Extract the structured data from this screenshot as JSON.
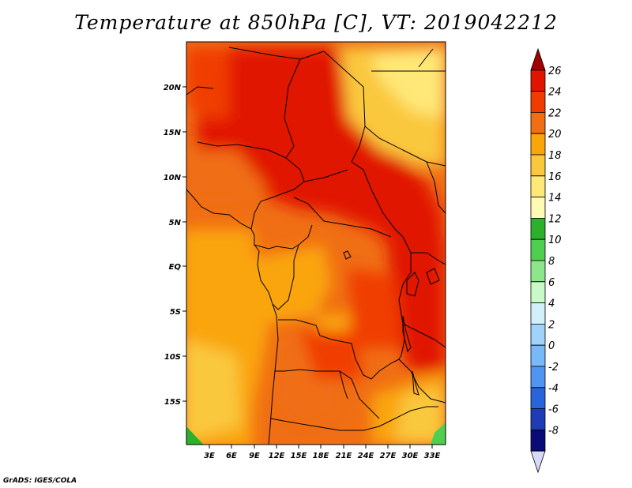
{
  "title": "Temperature at 850hPa [C], VT: 2019042212",
  "footer": "GrADS: IGES/COLA",
  "map": {
    "lat_labels": [
      "20N",
      "15N",
      "10N",
      "5N",
      "EQ",
      "5S",
      "10S",
      "15S"
    ],
    "lon_labels": [
      "3E",
      "6E",
      "9E",
      "12E",
      "15E",
      "18E",
      "21E",
      "24E",
      "27E",
      "30E",
      "33E"
    ]
  },
  "colorbar": {
    "levels": [
      "26",
      "24",
      "22",
      "20",
      "18",
      "16",
      "14",
      "12",
      "10",
      "8",
      "6",
      "4",
      "2",
      "0",
      "-2",
      "-4",
      "-6",
      "-8"
    ],
    "bin_colors": [
      "#a00000",
      "#e11400",
      "#f03c00",
      "#f06e14",
      "#faa50a",
      "#fac83c",
      "#ffe878",
      "#fffab4",
      "#2db12d",
      "#4fcf4f",
      "#8ce68c",
      "#c8fac8",
      "#d2f0fa",
      "#a0d2fa",
      "#78b9fa",
      "#5096f0",
      "#2864dc",
      "#1e3cb4",
      "#0a0a78",
      "#d8d8f8"
    ]
  }
}
